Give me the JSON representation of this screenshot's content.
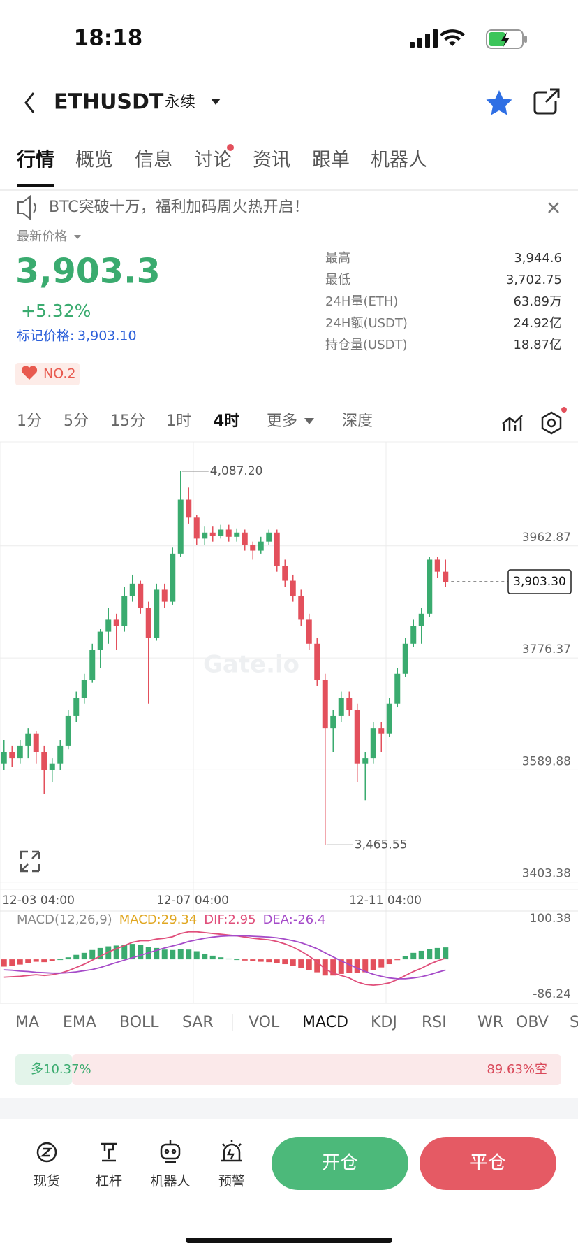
{
  "status": {
    "time": "18:18"
  },
  "header": {
    "symbol": "ETHUSDT",
    "contract": "永续"
  },
  "tabs": {
    "items": [
      "行情",
      "概览",
      "信息",
      "讨论",
      "资讯",
      "跟单",
      "机器人"
    ],
    "active": "行情"
  },
  "notice": "BTC突破十万，福利加码周火热开启！",
  "price": {
    "label": "最新价格",
    "last": "3,903.3",
    "change": "+5.32%",
    "mark_label": "标记价格:",
    "mark": "3,903.10",
    "rank": "NO.2"
  },
  "stats": [
    {
      "label": "最高",
      "value": "3,944.6"
    },
    {
      "label": "最低",
      "value": "3,702.75"
    },
    {
      "label": "24H量(ETH)",
      "value": "63.89万"
    },
    {
      "label": "24H额(USDT)",
      "value": "24.92亿"
    },
    {
      "label": "持仓量(USDT)",
      "value": "18.87亿"
    }
  ],
  "intervals": {
    "items": [
      "1分",
      "5分",
      "15分",
      "1时",
      "4时",
      "更多",
      "深度"
    ],
    "active": "4时"
  },
  "kline": {
    "watermark": "Gate.io",
    "ylim": [
      3391.4,
      4136
    ],
    "yticks": [
      3962.87,
      3776.37,
      3589.88,
      3403.38
    ],
    "xlim": [
      0,
      72
    ],
    "xticks": [
      {
        "value": 0,
        "label": "12-03 04:00"
      },
      {
        "value": 24,
        "label": "12-07 04:00"
      },
      {
        "value": 48,
        "label": "12-11 04:00"
      }
    ],
    "high": {
      "value": 4087.2,
      "label": "4,087.20"
    },
    "low": {
      "value": 3465.55,
      "label": "3,465.55"
    },
    "current": {
      "value": 3903.3,
      "label": "3,903.30"
    },
    "candles": [
      [
        3600,
        3640,
        3590,
        3620
      ],
      [
        3620,
        3630,
        3595,
        3610
      ],
      [
        3610,
        3640,
        3600,
        3630
      ],
      [
        3630,
        3660,
        3610,
        3650
      ],
      [
        3650,
        3655,
        3600,
        3620
      ],
      [
        3620,
        3630,
        3550,
        3590
      ],
      [
        3590,
        3610,
        3570,
        3600
      ],
      [
        3600,
        3640,
        3590,
        3630
      ],
      [
        3630,
        3690,
        3625,
        3680
      ],
      [
        3680,
        3720,
        3670,
        3710
      ],
      [
        3710,
        3750,
        3700,
        3740
      ],
      [
        3740,
        3800,
        3735,
        3790
      ],
      [
        3790,
        3825,
        3760,
        3820
      ],
      [
        3820,
        3860,
        3800,
        3840
      ],
      [
        3840,
        3850,
        3790,
        3830
      ],
      [
        3830,
        3895,
        3820,
        3880
      ],
      [
        3880,
        3915,
        3870,
        3900
      ],
      [
        3900,
        3905,
        3850,
        3860
      ],
      [
        3860,
        3870,
        3700,
        3810
      ],
      [
        3810,
        3900,
        3805,
        3890
      ],
      [
        3890,
        3900,
        3860,
        3870
      ],
      [
        3870,
        3960,
        3865,
        3950
      ],
      [
        3950,
        4087.2,
        3945,
        4040
      ],
      [
        4040,
        4060,
        4000,
        4010
      ],
      [
        4010,
        4015,
        3965,
        3975
      ],
      [
        3975,
        3995,
        3965,
        3985
      ],
      [
        3985,
        3995,
        3970,
        3980
      ],
      [
        3980,
        3998,
        3975,
        3990
      ],
      [
        3990,
        3998,
        3970,
        3978
      ],
      [
        3978,
        3992,
        3970,
        3985
      ],
      [
        3985,
        3990,
        3955,
        3965
      ],
      [
        3965,
        3970,
        3940,
        3955
      ],
      [
        3955,
        3978,
        3950,
        3970
      ],
      [
        3970,
        3990,
        3965,
        3985
      ],
      [
        3985,
        3990,
        3920,
        3930
      ],
      [
        3930,
        3940,
        3895,
        3905
      ],
      [
        3905,
        3915,
        3870,
        3880
      ],
      [
        3880,
        3890,
        3830,
        3840
      ],
      [
        3840,
        3850,
        3790,
        3800
      ],
      [
        3800,
        3810,
        3730,
        3740
      ],
      [
        3740,
        3750,
        3465.55,
        3660
      ],
      [
        3660,
        3690,
        3620,
        3680
      ],
      [
        3680,
        3720,
        3670,
        3710
      ],
      [
        3710,
        3720,
        3680,
        3690
      ],
      [
        3690,
        3700,
        3570,
        3600
      ],
      [
        3600,
        3620,
        3540,
        3610
      ],
      [
        3610,
        3670,
        3600,
        3660
      ],
      [
        3660,
        3670,
        3620,
        3650
      ],
      [
        3650,
        3710,
        3645,
        3700
      ],
      [
        3700,
        3760,
        3695,
        3750
      ],
      [
        3750,
        3810,
        3745,
        3800
      ],
      [
        3800,
        3840,
        3795,
        3830
      ],
      [
        3830,
        3860,
        3800,
        3850
      ],
      [
        3850,
        3945,
        3845,
        3940
      ],
      [
        3940,
        3945,
        3910,
        3920
      ],
      [
        3920,
        3940,
        3895,
        3903.3
      ]
    ]
  },
  "macd": {
    "title": "MACD(12,26,9)",
    "macd_label": "MACD:29.34",
    "dif_label": "DIF:2.95",
    "dea_label": "DEA:-26.4",
    "ylim": [
      -86.24,
      100.38
    ],
    "yticks": [
      100.38,
      -86.24
    ],
    "hist": [
      -18,
      -16,
      -13,
      -10,
      -6,
      -7,
      -4,
      0,
      5,
      11,
      16,
      23,
      28,
      32,
      34,
      36,
      38,
      36,
      30,
      28,
      24,
      23,
      26,
      24,
      20,
      14,
      9,
      5,
      2,
      0,
      -3,
      -5,
      -6,
      -7,
      -9,
      -12,
      -16,
      -21,
      -26,
      -32,
      -40,
      -40,
      -36,
      -33,
      -34,
      -32,
      -27,
      -20,
      -12,
      -2,
      8,
      16,
      21,
      26,
      28,
      29.34
    ],
    "dif": [
      -44,
      -43,
      -42,
      -40,
      -38,
      -40,
      -38,
      -34,
      -28,
      -20,
      -12,
      -2,
      8,
      18,
      26,
      34,
      42,
      46,
      46,
      50,
      52,
      56,
      64,
      68,
      68,
      66,
      64,
      62,
      60,
      58,
      55,
      52,
      50,
      48,
      44,
      38,
      30,
      20,
      8,
      -6,
      -24,
      -34,
      -40,
      -46,
      -56,
      -62,
      -64,
      -62,
      -58,
      -50,
      -40,
      -30,
      -22,
      -12,
      -4,
      2.95
    ],
    "dea": [
      -26,
      -27,
      -29,
      -30,
      -32,
      -33,
      -34,
      -34,
      -33,
      -31,
      -28,
      -25,
      -20,
      -14,
      -8,
      -2,
      4,
      10,
      16,
      22,
      28,
      33,
      38,
      44,
      48,
      52,
      55,
      57,
      58,
      58,
      58,
      57,
      56,
      55,
      53,
      50,
      46,
      41,
      34,
      26,
      16,
      6,
      -4,
      -13,
      -22,
      -30,
      -37,
      -42,
      -46,
      -48,
      -48,
      -46,
      -43,
      -38,
      -32,
      -26.4
    ]
  },
  "indicators": {
    "items": [
      "MA",
      "EMA",
      "BOLL",
      "SAR",
      "VOL",
      "MACD",
      "KDJ",
      "RSI",
      "WR",
      "OBV",
      "S"
    ],
    "active": "MACD"
  },
  "sentiment": {
    "long": {
      "value": 10.37,
      "label": "多10.37%"
    },
    "short": {
      "value": 89.63,
      "label": "89.63%空"
    }
  },
  "nav": [
    "现货",
    "杠杆",
    "机器人",
    "预警"
  ],
  "buttons": {
    "open": "开仓",
    "close": "平仓"
  }
}
